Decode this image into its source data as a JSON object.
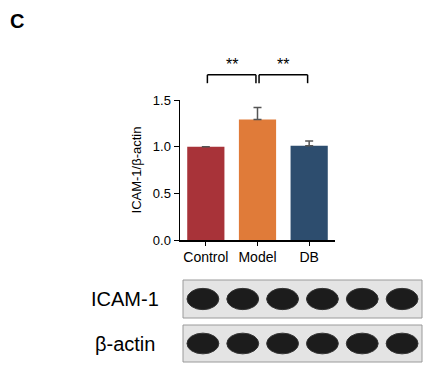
{
  "chart_data": {
    "type": "bar",
    "panel_label": "C",
    "categories": [
      "Control",
      "Model",
      "DB"
    ],
    "values": [
      1.0,
      1.29,
      1.01
    ],
    "error": [
      0,
      0.13,
      0.05
    ],
    "colors": [
      "#a83339",
      "#e07b39",
      "#2d4d6e"
    ],
    "y_label": "ICAM-1/β-actin",
    "ylim": [
      0,
      1.5
    ],
    "yticks": [
      {
        "value": 0,
        "label": "0.0"
      },
      {
        "value": 0.5,
        "label": "0.5"
      },
      {
        "value": 1.0,
        "label": "1.0"
      },
      {
        "value": 1.5,
        "label": "1.5"
      }
    ],
    "grid": false,
    "comparisons": [
      {
        "from": "Control",
        "to": "Model",
        "label": "**",
        "y": 1.77
      },
      {
        "from": "Model",
        "to": "DB",
        "label": "**",
        "y": 1.77
      }
    ],
    "blot": {
      "rows": [
        "ICAM-1",
        "β-actin"
      ],
      "lanes": 6
    }
  }
}
